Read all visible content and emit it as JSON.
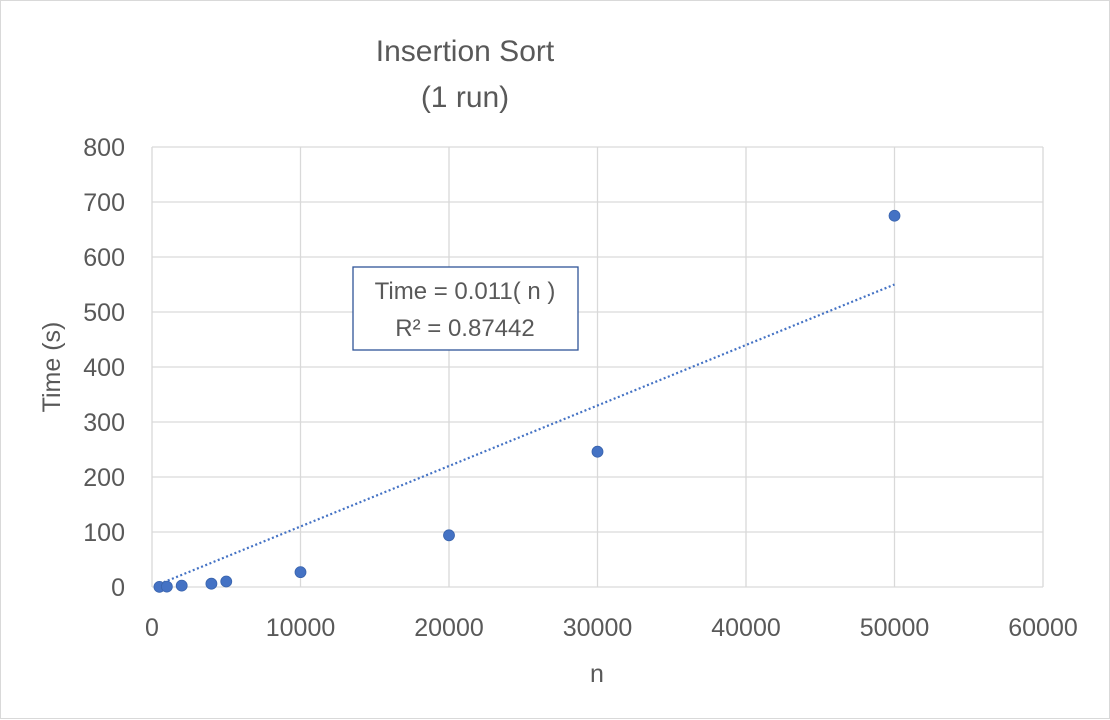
{
  "chart_data": {
    "type": "scatter",
    "title": [
      "Insertion Sort",
      "(1 run)"
    ],
    "xlabel": "n",
    "ylabel": "Time (s)",
    "xlim": [
      0,
      60000
    ],
    "ylim": [
      0,
      800
    ],
    "xticks": [
      0,
      10000,
      20000,
      30000,
      40000,
      50000,
      60000
    ],
    "yticks": [
      0,
      100,
      200,
      300,
      400,
      500,
      600,
      700,
      800
    ],
    "grid": true,
    "legend": "none",
    "series": [
      {
        "marker_color": "#4472c4",
        "points": [
          {
            "x": 500,
            "y": 0.2
          },
          {
            "x": 1000,
            "y": 0.7
          },
          {
            "x": 2000,
            "y": 2.5
          },
          {
            "x": 4000,
            "y": 6
          },
          {
            "x": 5000,
            "y": 10
          },
          {
            "x": 10000,
            "y": 27
          },
          {
            "x": 20000,
            "y": 94
          },
          {
            "x": 30000,
            "y": 246
          },
          {
            "x": 50000,
            "y": 675
          }
        ]
      }
    ],
    "trendline": {
      "type": "linear",
      "style": "dotted",
      "color": "#4472c4",
      "slope": 0.011,
      "x_range": [
        500,
        50000
      ],
      "equation_text": "Time = 0.011( n )",
      "r2_text": "R² = 0.87442"
    }
  }
}
